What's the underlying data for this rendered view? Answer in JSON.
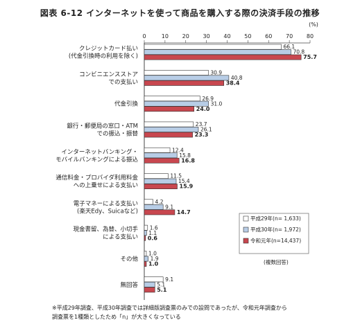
{
  "chart_data": {
    "type": "bar",
    "orientation": "horizontal",
    "title": "図表 6-12 インターネットを使って商品を購入する際の決済手段の推移",
    "unit_label": "(%)",
    "xlim": [
      0,
      80
    ],
    "ticks": [
      0,
      10,
      20,
      30,
      40,
      50,
      60,
      70,
      80
    ],
    "categories": [
      [
        "クレジットカード払い",
        "(代金引換時の利用を除く)"
      ],
      [
        "コンビニエンスストア",
        "での支払い"
      ],
      [
        "代金引換"
      ],
      [
        "銀行・郵便局の窓口・ATM",
        "での振込・振替"
      ],
      [
        "インターネットバンキング・",
        "モバイルバンキングによる振込"
      ],
      [
        "通信料金・プロバイダ利用料金",
        "への上乗せによる支払い"
      ],
      [
        "電子マネーによる支払い",
        "(楽天Edy、Suicaなど)"
      ],
      [
        "現金書留、為替、小切手",
        "による支払い"
      ],
      [
        "その他"
      ],
      [
        "無回答"
      ]
    ],
    "series": [
      {
        "name": "平成29年",
        "n_label": "(n= 1,633)",
        "color": "#ffffff",
        "values": [
          66.1,
          30.9,
          26.9,
          23.7,
          12.4,
          11.5,
          4.2,
          1.6,
          1.0,
          9.1
        ]
      },
      {
        "name": "平成30年",
        "n_label": "(n= 1,972)",
        "color": "#b8cde6",
        "values": [
          70.8,
          40.8,
          31.0,
          26.1,
          15.8,
          15.4,
          9.1,
          1.1,
          1.9,
          5.1
        ]
      },
      {
        "name": "令和元年",
        "n_label": "(n=14,437)",
        "color": "#c8474f",
        "values": [
          75.7,
          38.4,
          24.0,
          23.3,
          16.8,
          15.9,
          14.7,
          0.6,
          1.0,
          5.1
        ]
      }
    ],
    "legend_position": "bottom-right",
    "multiple_answers_note": "(複数回答)",
    "footnote": [
      "※平成29年調査、平成30年調査では詳細版調査票のみでの設問であったが、令和元年調査から",
      "調査票を1種類としたため「n」が大きくなっている"
    ]
  }
}
